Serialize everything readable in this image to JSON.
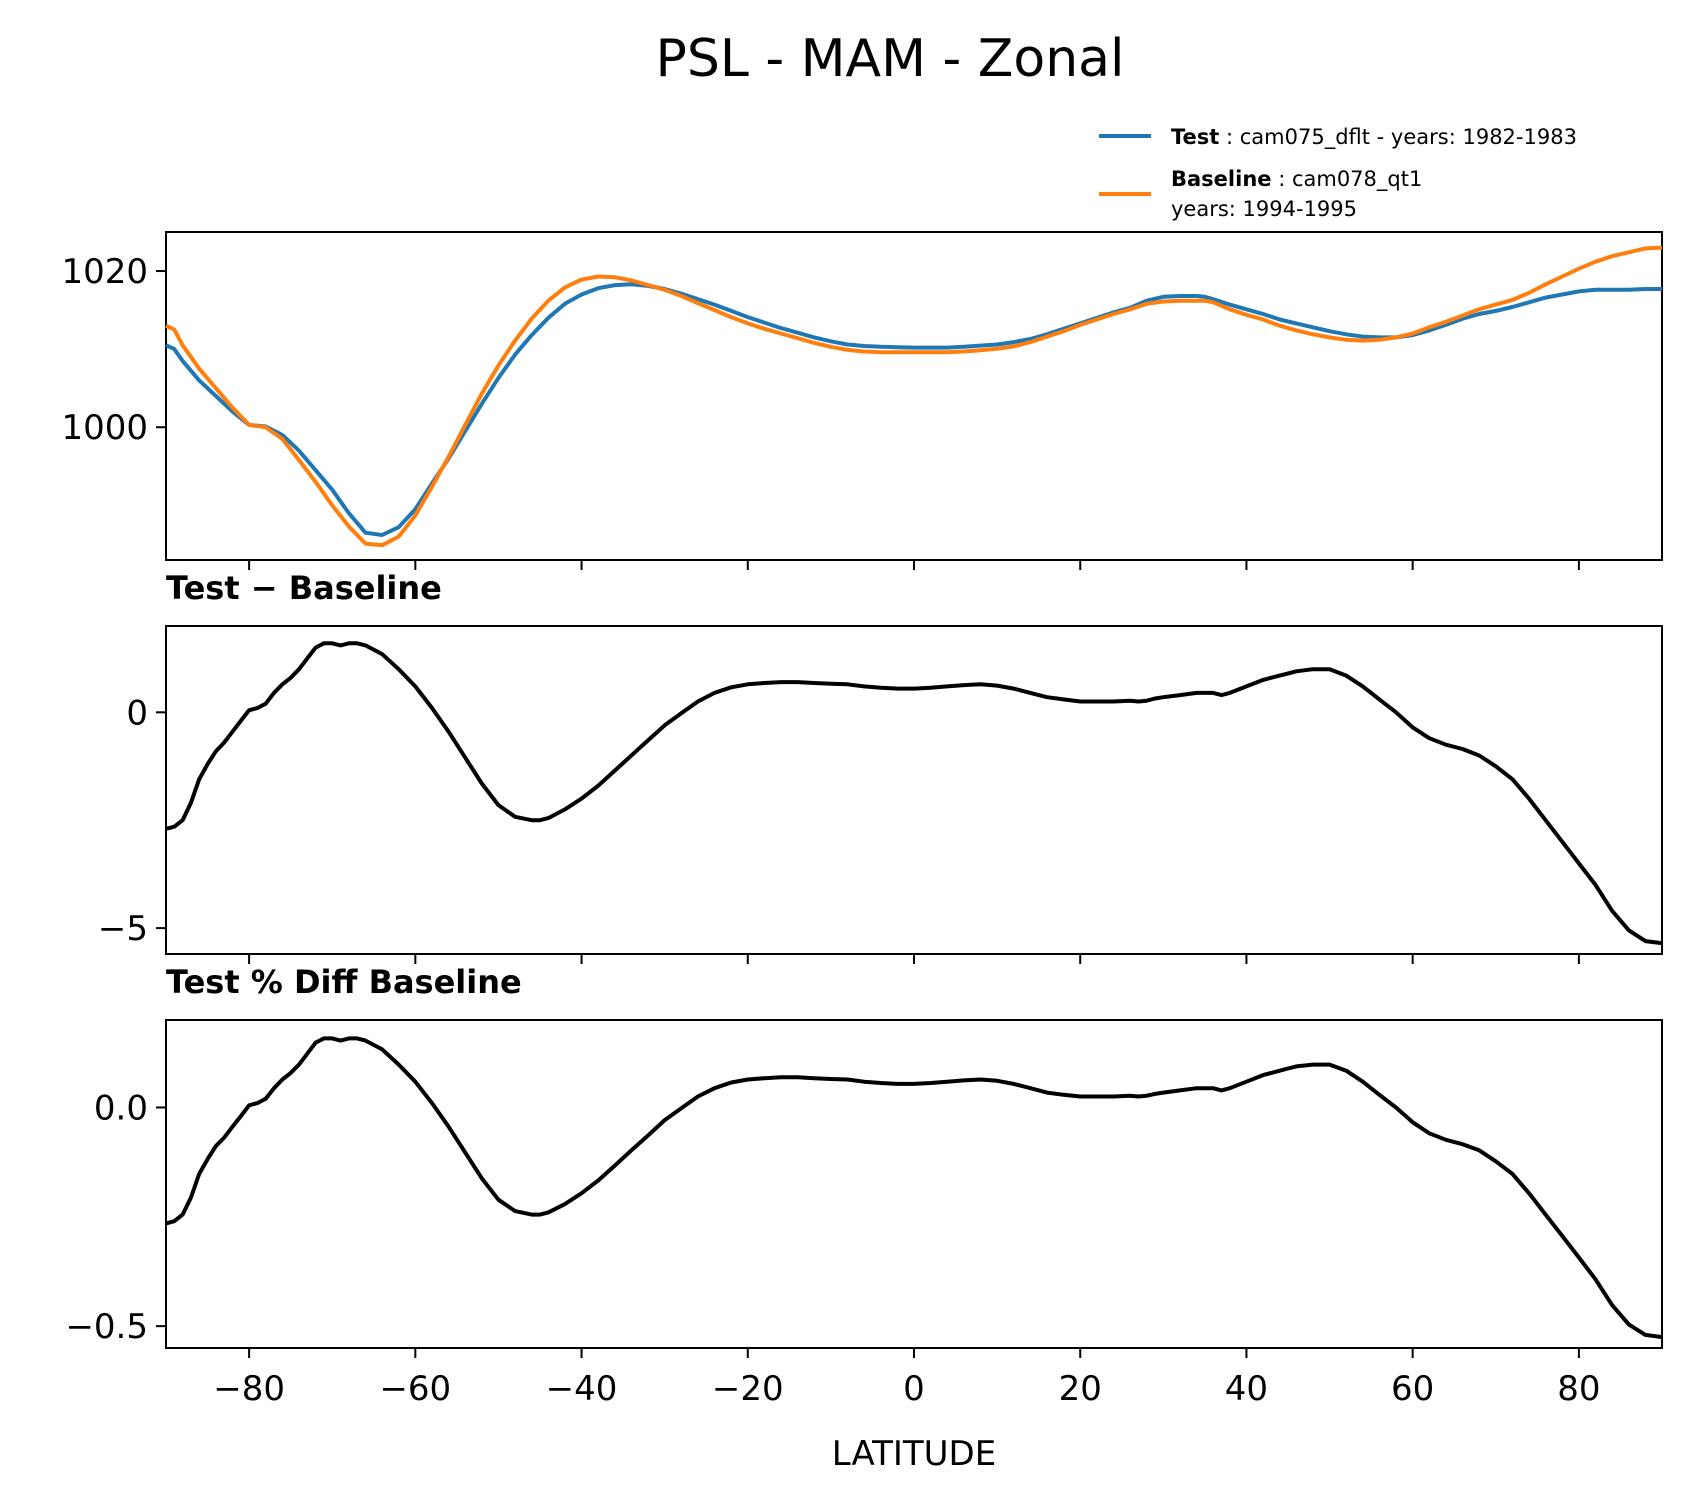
{
  "chart_data": {
    "type": "line",
    "title": "PSL - MAM - Zonal",
    "xlabel": "LATITUDE",
    "xlim": [
      -90,
      90
    ],
    "xticks": [
      -80,
      -60,
      -40,
      -20,
      0,
      20,
      40,
      60,
      80
    ],
    "xtick_labels": [
      "−80",
      "−60",
      "−40",
      "−20",
      "0",
      "20",
      "40",
      "60",
      "80"
    ],
    "legend": {
      "position": "top-right",
      "entries": [
        {
          "label_bold": "Test",
          "label": " : cam075_dflt - years: 1982-1983",
          "label2": "",
          "color": "#1f77b4"
        },
        {
          "label_bold": "Baseline",
          "label": " : cam078_qt1",
          "label2": "years: 1994-1995",
          "color": "#ff7f0e"
        }
      ]
    },
    "panels": [
      {
        "id": "zonal",
        "title": "",
        "ylim": [
          983,
          1025
        ],
        "yticks": [
          1000,
          1020
        ],
        "ytick_labels": [
          "1000",
          "1020"
        ],
        "series": [
          {
            "name": "Test",
            "color": "#1f77b4",
            "x": [
              -90,
              -89,
              -88,
              -86,
              -84,
              -82,
              -80,
              -78,
              -76,
              -74,
              -72,
              -70,
              -68,
              -66,
              -64,
              -62,
              -60,
              -58,
              -56,
              -54,
              -52,
              -50,
              -48,
              -46,
              -44,
              -42,
              -40,
              -38,
              -36,
              -34,
              -32,
              -30,
              -28,
              -26,
              -24,
              -22,
              -20,
              -18,
              -16,
              -14,
              -12,
              -10,
              -8,
              -6,
              -4,
              -2,
              0,
              2,
              4,
              6,
              8,
              10,
              12,
              14,
              16,
              18,
              20,
              22,
              24,
              26,
              28,
              30,
              32,
              34,
              35,
              36,
              38,
              40,
              42,
              44,
              46,
              48,
              50,
              52,
              54,
              56,
              58,
              60,
              62,
              64,
              66,
              68,
              70,
              72,
              74,
              76,
              78,
              80,
              82,
              84,
              86,
              88,
              90
            ],
            "y": [
              1010.5,
              1010,
              1008.5,
              1006,
              1004,
              1002,
              1000.3,
              1000.1,
              999,
              997,
              994.5,
              992,
              989,
              986.5,
              986.2,
              987.2,
              989.5,
              992.8,
              996,
              999.5,
              1003,
              1006.3,
              1009.3,
              1011.8,
              1014,
              1015.8,
              1017,
              1017.8,
              1018.2,
              1018.3,
              1018.1,
              1017.7,
              1017.1,
              1016.4,
              1015.7,
              1014.9,
              1014.1,
              1013.4,
              1012.7,
              1012.1,
              1011.5,
              1011,
              1010.6,
              1010.4,
              1010.3,
              1010.25,
              1010.2,
              1010.2,
              1010.2,
              1010.3,
              1010.45,
              1010.6,
              1010.9,
              1011.3,
              1011.9,
              1012.6,
              1013.3,
              1014,
              1014.7,
              1015.3,
              1016.2,
              1016.7,
              1016.8,
              1016.8,
              1016.7,
              1016.4,
              1015.7,
              1015.1,
              1014.5,
              1013.8,
              1013.3,
              1012.8,
              1012.3,
              1011.9,
              1011.6,
              1011.5,
              1011.5,
              1011.8,
              1012.4,
              1013.1,
              1013.9,
              1014.5,
              1014.9,
              1015.4,
              1016,
              1016.6,
              1017,
              1017.4,
              1017.6,
              1017.6,
              1017.6,
              1017.7,
              1017.7
            ]
          },
          {
            "name": "Baseline",
            "color": "#ff7f0e",
            "x": [
              -90,
              -89,
              -88,
              -86,
              -84,
              -82,
              -80,
              -78,
              -76,
              -74,
              -72,
              -70,
              -68,
              -66,
              -64,
              -62,
              -60,
              -58,
              -56,
              -54,
              -52,
              -50,
              -48,
              -46,
              -44,
              -42,
              -40,
              -38,
              -36,
              -34,
              -32,
              -30,
              -28,
              -26,
              -24,
              -22,
              -20,
              -18,
              -16,
              -14,
              -12,
              -10,
              -8,
              -6,
              -4,
              -2,
              0,
              2,
              4,
              6,
              8,
              10,
              12,
              14,
              16,
              18,
              20,
              22,
              24,
              26,
              28,
              30,
              32,
              34,
              35,
              36,
              38,
              40,
              42,
              44,
              46,
              48,
              50,
              52,
              54,
              56,
              58,
              60,
              62,
              64,
              66,
              68,
              70,
              72,
              74,
              76,
              78,
              80,
              82,
              84,
              86,
              88,
              90
            ],
            "y": [
              1013,
              1012.5,
              1010.5,
              1007.5,
              1005,
              1002.5,
              1000.3,
              1000,
              998.5,
              995.8,
              993,
              990,
              987.3,
              985.1,
              984.9,
              986,
              988.7,
              992.4,
              996.2,
              1000.3,
              1004.3,
              1007.9,
              1011.1,
              1013.9,
              1016.2,
              1017.9,
              1018.9,
              1019.3,
              1019.2,
              1018.8,
              1018.2,
              1017.6,
              1016.8,
              1015.9,
              1015,
              1014.1,
              1013.3,
              1012.6,
              1012,
              1011.4,
              1010.8,
              1010.3,
              1009.9,
              1009.7,
              1009.6,
              1009.6,
              1009.6,
              1009.6,
              1009.6,
              1009.7,
              1009.85,
              1010.05,
              1010.35,
              1010.9,
              1011.6,
              1012.3,
              1013.1,
              1013.8,
              1014.5,
              1015.1,
              1015.8,
              1016.1,
              1016.2,
              1016.2,
              1016.2,
              1016,
              1015.1,
              1014.4,
              1013.8,
              1013,
              1012.4,
              1011.9,
              1011.5,
              1011.2,
              1011.1,
              1011.2,
              1011.5,
              1012,
              1012.8,
              1013.5,
              1014.3,
              1015.1,
              1015.7,
              1016.3,
              1017.2,
              1018.3,
              1019.3,
              1020.3,
              1021.2,
              1021.9,
              1022.4,
              1022.9,
              1023
            ]
          }
        ]
      },
      {
        "id": "diff",
        "title": "Test − Baseline",
        "ylim": [
          -5.6,
          2.0
        ],
        "yticks": [
          -5,
          0
        ],
        "ytick_labels": [
          "−5",
          "0"
        ],
        "series": [
          {
            "name": "Test − Baseline",
            "color": "#000000",
            "x": [
              -90,
              -89,
              -88,
              -87,
              -86,
              -85,
              -84,
              -83,
              -82,
              -81,
              -80,
              -79,
              -78,
              -77,
              -76,
              -75,
              -74,
              -73,
              -72,
              -71,
              -70,
              -69,
              -68,
              -67,
              -66,
              -64,
              -62,
              -60,
              -58,
              -56,
              -54,
              -52,
              -50,
              -48,
              -46,
              -45,
              -44,
              -42,
              -40,
              -38,
              -36,
              -34,
              -32,
              -30,
              -28,
              -26,
              -24,
              -22,
              -20,
              -18,
              -16,
              -14,
              -12,
              -10,
              -8,
              -6,
              -4,
              -2,
              0,
              2,
              4,
              6,
              8,
              10,
              12,
              14,
              16,
              18,
              20,
              22,
              24,
              26,
              27,
              28,
              29,
              30,
              32,
              34,
              36,
              37,
              38,
              40,
              42,
              44,
              45,
              46,
              48,
              49,
              50,
              52,
              54,
              56,
              58,
              60,
              62,
              64,
              66,
              68,
              70,
              72,
              74,
              76,
              78,
              80,
              82,
              84,
              86,
              88,
              90
            ],
            "y": [
              -2.7,
              -2.65,
              -2.5,
              -2.1,
              -1.55,
              -1.2,
              -0.9,
              -0.7,
              -0.45,
              -0.2,
              0.05,
              0.1,
              0.2,
              0.45,
              0.65,
              0.8,
              1.0,
              1.25,
              1.5,
              1.6,
              1.6,
              1.55,
              1.6,
              1.6,
              1.55,
              1.35,
              1.0,
              0.6,
              0.1,
              -0.45,
              -1.05,
              -1.65,
              -2.15,
              -2.42,
              -2.5,
              -2.5,
              -2.45,
              -2.25,
              -2.0,
              -1.7,
              -1.35,
              -1.0,
              -0.65,
              -0.3,
              -0.02,
              0.25,
              0.45,
              0.58,
              0.65,
              0.68,
              0.7,
              0.7,
              0.68,
              0.66,
              0.65,
              0.6,
              0.57,
              0.55,
              0.55,
              0.57,
              0.6,
              0.63,
              0.65,
              0.62,
              0.55,
              0.45,
              0.35,
              0.3,
              0.25,
              0.25,
              0.25,
              0.27,
              0.25,
              0.27,
              0.32,
              0.35,
              0.4,
              0.45,
              0.45,
              0.4,
              0.45,
              0.6,
              0.75,
              0.85,
              0.9,
              0.95,
              1.0,
              1.0,
              1.0,
              0.85,
              0.6,
              0.3,
              0.0,
              -0.35,
              -0.6,
              -0.75,
              -0.85,
              -1.0,
              -1.25,
              -1.55,
              -2.0,
              -2.5,
              -3.0,
              -3.5,
              -4.0,
              -4.6,
              -5.05,
              -5.3,
              -5.35
            ]
          }
        ]
      },
      {
        "id": "pctdiff",
        "title": "Test % Diff Baseline",
        "ylim": [
          -0.55,
          0.2
        ],
        "yticks": [
          -0.5,
          0.0
        ],
        "ytick_labels": [
          "−0.5",
          "0.0"
        ],
        "series": [
          {
            "name": "Test % Diff Baseline",
            "color": "#000000",
            "x": [
              -90,
              -89,
              -88,
              -87,
              -86,
              -85,
              -84,
              -83,
              -82,
              -81,
              -80,
              -79,
              -78,
              -77,
              -76,
              -75,
              -74,
              -73,
              -72,
              -71,
              -70,
              -69,
              -68,
              -67,
              -66,
              -64,
              -62,
              -60,
              -58,
              -56,
              -54,
              -52,
              -50,
              -48,
              -46,
              -45,
              -44,
              -42,
              -40,
              -38,
              -36,
              -34,
              -32,
              -30,
              -28,
              -26,
              -24,
              -22,
              -20,
              -18,
              -16,
              -14,
              -12,
              -10,
              -8,
              -6,
              -4,
              -2,
              0,
              2,
              4,
              6,
              8,
              10,
              12,
              14,
              16,
              18,
              20,
              22,
              24,
              26,
              27,
              28,
              29,
              30,
              32,
              34,
              36,
              37,
              38,
              40,
              42,
              44,
              45,
              46,
              48,
              49,
              50,
              52,
              54,
              56,
              58,
              60,
              62,
              64,
              66,
              68,
              70,
              72,
              74,
              76,
              78,
              80,
              82,
              84,
              86,
              88,
              90
            ],
            "y": [
              -0.265,
              -0.26,
              -0.245,
              -0.206,
              -0.152,
              -0.118,
              -0.088,
              -0.069,
              -0.044,
              -0.02,
              0.005,
              0.01,
              0.02,
              0.044,
              0.064,
              0.079,
              0.098,
              0.123,
              0.148,
              0.158,
              0.158,
              0.153,
              0.158,
              0.158,
              0.153,
              0.133,
              0.098,
              0.059,
              0.01,
              -0.044,
              -0.103,
              -0.162,
              -0.211,
              -0.237,
              -0.245,
              -0.245,
              -0.24,
              -0.221,
              -0.196,
              -0.167,
              -0.133,
              -0.098,
              -0.064,
              -0.029,
              -0.002,
              0.025,
              0.044,
              0.057,
              0.064,
              0.067,
              0.069,
              0.069,
              0.067,
              0.065,
              0.064,
              0.059,
              0.056,
              0.054,
              0.054,
              0.056,
              0.059,
              0.062,
              0.064,
              0.061,
              0.054,
              0.044,
              0.034,
              0.029,
              0.025,
              0.025,
              0.025,
              0.027,
              0.025,
              0.027,
              0.031,
              0.034,
              0.039,
              0.044,
              0.044,
              0.039,
              0.044,
              0.059,
              0.074,
              0.084,
              0.089,
              0.094,
              0.098,
              0.098,
              0.098,
              0.084,
              0.059,
              0.029,
              0.0,
              -0.034,
              -0.059,
              -0.074,
              -0.084,
              -0.098,
              -0.123,
              -0.152,
              -0.196,
              -0.245,
              -0.294,
              -0.343,
              -0.393,
              -0.452,
              -0.496,
              -0.52,
              -0.525
            ]
          }
        ]
      }
    ]
  }
}
